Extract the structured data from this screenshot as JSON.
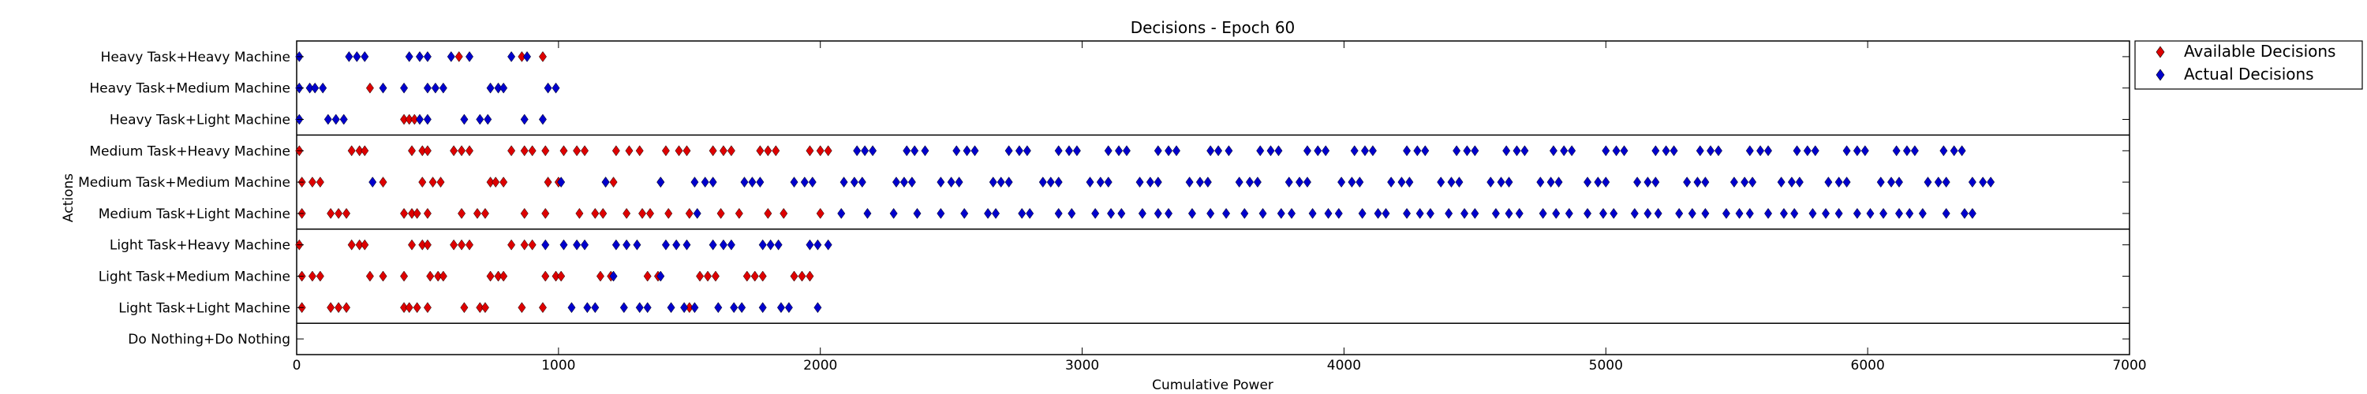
{
  "chart_data": {
    "type": "scatter",
    "title": "Decisions - Epoch 60",
    "xlabel": "Cumulative Power",
    "ylabel": "Actions",
    "xlim": [
      0,
      7000
    ],
    "xticks": [
      0,
      1000,
      2000,
      3000,
      4000,
      5000,
      6000,
      7000
    ],
    "categories": [
      "Heavy Task+Heavy Machine",
      "Heavy Task+Medium Machine",
      "Heavy Task+Light Machine",
      "Medium Task+Heavy Machine",
      "Medium Task+Medium Machine",
      "Medium Task+Light Machine",
      "Light Task+Heavy Machine",
      "Light Task+Medium Machine",
      "Light Task+Light Machine",
      "Do Nothing+Do Nothing"
    ],
    "group_separators_after": [
      2,
      5,
      8
    ],
    "legend_position": "outside-right",
    "colors": {
      "available": "#dd0000",
      "actual": "#0000cc"
    },
    "series": [
      {
        "name": "Available Decisions",
        "color": "#dd0000",
        "points": {
          "Heavy Task+Heavy Machine": [
            620,
            860,
            940
          ],
          "Heavy Task+Medium Machine": [
            280
          ],
          "Heavy Task+Light Machine": [
            410,
            430,
            450
          ],
          "Medium Task+Heavy Machine": [
            10,
            210,
            240,
            260,
            440,
            480,
            500,
            600,
            630,
            660,
            820,
            870,
            900,
            950,
            1020,
            1070,
            1100,
            1220,
            1270,
            1310,
            1410,
            1460,
            1490,
            1590,
            1630,
            1660,
            1770,
            1800,
            1830,
            1960,
            2000,
            2030
          ],
          "Medium Task+Medium Machine": [
            20,
            60,
            90,
            330,
            480,
            520,
            550,
            740,
            760,
            790,
            960,
            1000,
            1180,
            1210,
            1390
          ],
          "Medium Task+Light Machine": [
            20,
            130,
            160,
            190,
            410,
            440,
            460,
            500,
            630,
            690,
            720,
            870,
            950,
            1080,
            1140,
            1170,
            1260,
            1320,
            1350,
            1420,
            1500,
            1620,
            1690,
            1800,
            1860,
            2000
          ],
          "Light Task+Heavy Machine": [
            10,
            210,
            240,
            260,
            440,
            480,
            500,
            600,
            630,
            660,
            820,
            870,
            900
          ],
          "Light Task+Medium Machine": [
            20,
            60,
            90,
            280,
            330,
            410,
            510,
            540,
            560,
            740,
            770,
            790,
            950,
            990,
            1010,
            1160,
            1200,
            1340,
            1380,
            1540,
            1570,
            1600,
            1720,
            1750,
            1780,
            1900,
            1930,
            1960
          ],
          "Light Task+Light Machine": [
            20,
            130,
            160,
            190,
            410,
            430,
            460,
            500,
            640,
            700,
            720,
            860,
            940,
            1500
          ],
          "Do Nothing+Do Nothing": []
        }
      },
      {
        "name": "Actual Decisions",
        "color": "#0000cc",
        "points": {
          "Heavy Task+Heavy Machine": [
            10,
            200,
            230,
            260,
            430,
            470,
            500,
            590,
            660,
            820,
            880
          ],
          "Heavy Task+Medium Machine": [
            10,
            50,
            70,
            100,
            330,
            410,
            500,
            530,
            560,
            740,
            770,
            790,
            960,
            990
          ],
          "Heavy Task+Light Machine": [
            10,
            120,
            150,
            180,
            470,
            500,
            640,
            700,
            730,
            870,
            940
          ],
          "Medium Task+Heavy Machine": [
            2140,
            2170,
            2200,
            2330,
            2360,
            2400,
            2520,
            2560,
            2590,
            2720,
            2760,
            2790,
            2910,
            2950,
            2980,
            3100,
            3140,
            3170,
            3290,
            3330,
            3360,
            3490,
            3520,
            3560,
            3680,
            3720,
            3750,
            3860,
            3900,
            3930,
            4040,
            4080,
            4110,
            4240,
            4280,
            4310,
            4430,
            4470,
            4500,
            4620,
            4660,
            4690,
            4800,
            4840,
            4870,
            5000,
            5040,
            5070,
            5190,
            5230,
            5260,
            5360,
            5400,
            5430,
            5550,
            5590,
            5620,
            5730,
            5770,
            5800,
            5920,
            5960,
            5990,
            6110,
            6150,
            6180,
            6290,
            6330,
            6360
          ],
          "Medium Task+Medium Machine": [
            290,
            1010,
            1180,
            1390,
            1520,
            1560,
            1590,
            1710,
            1740,
            1770,
            1900,
            1940,
            1970,
            2090,
            2130,
            2160,
            2290,
            2320,
            2350,
            2460,
            2500,
            2530,
            2660,
            2690,
            2720,
            2850,
            2880,
            2910,
            3030,
            3070,
            3100,
            3220,
            3260,
            3290,
            3410,
            3450,
            3480,
            3600,
            3640,
            3670,
            3790,
            3830,
            3860,
            3990,
            4030,
            4060,
            4180,
            4220,
            4250,
            4370,
            4410,
            4440,
            4560,
            4600,
            4630,
            4750,
            4790,
            4820,
            4930,
            4970,
            5000,
            5120,
            5160,
            5190,
            5310,
            5350,
            5380,
            5490,
            5530,
            5560,
            5670,
            5710,
            5740,
            5850,
            5890,
            5920,
            6050,
            6090,
            6120,
            6230,
            6270,
            6300,
            6400,
            6440,
            6470
          ],
          "Medium Task+Light Machine": [
            1530,
            2080,
            2180,
            2280,
            2370,
            2460,
            2550,
            2640,
            2670,
            2770,
            2800,
            2910,
            2960,
            3050,
            3110,
            3150,
            3230,
            3290,
            3330,
            3420,
            3490,
            3550,
            3620,
            3690,
            3760,
            3800,
            3880,
            3940,
            3980,
            4070,
            4130,
            4160,
            4240,
            4290,
            4330,
            4400,
            4460,
            4500,
            4580,
            4630,
            4670,
            4760,
            4810,
            4860,
            4930,
            4990,
            5030,
            5110,
            5160,
            5200,
            5280,
            5330,
            5380,
            5460,
            5510,
            5550,
            5620,
            5680,
            5720,
            5790,
            5840,
            5890,
            5960,
            6010,
            6060,
            6120,
            6160,
            6210,
            6300,
            6370,
            6400
          ],
          "Light Task+Heavy Machine": [
            950,
            1020,
            1070,
            1100,
            1220,
            1260,
            1300,
            1410,
            1450,
            1490,
            1590,
            1630,
            1660,
            1780,
            1810,
            1840,
            1960,
            1990,
            2030
          ],
          "Light Task+Medium Machine": [
            1210,
            1390
          ],
          "Light Task+Light Machine": [
            1050,
            1110,
            1140,
            1250,
            1310,
            1340,
            1430,
            1480,
            1520,
            1610,
            1670,
            1700,
            1780,
            1850,
            1880,
            1990
          ],
          "Do Nothing+Do Nothing": []
        }
      }
    ]
  }
}
